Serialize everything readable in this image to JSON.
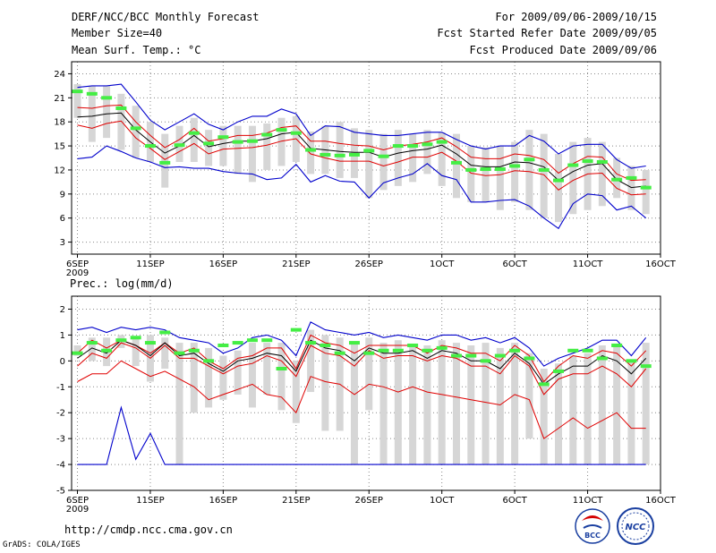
{
  "header": {
    "title": "DERF/NCC/BCC Monthly Forecast",
    "member_size": "Member Size=40",
    "variable": "Mean Surf. Temp.: °C",
    "period": "For 2009/09/06-2009/10/15",
    "started": "Fcst Started Refer Date 2009/09/05",
    "produced": "Fcst Produced Date 2009/09/06"
  },
  "footer": {
    "url": "http://cmdp.ncc.cma.gov.cn",
    "grads": "GrADS: COLA/IGES",
    "logo_bcc": "BCC",
    "logo_ncc": "NCC"
  },
  "colors": {
    "box": "#d6d6d6",
    "mean": "#000000",
    "spread": "#e00000",
    "range": "#0000cc",
    "obs": "#44ee44",
    "grid": "#888888"
  },
  "chart_data": [
    {
      "type": "line",
      "title": "Mean Surf. Temp.: °C",
      "x": [
        1,
        2,
        3,
        4,
        5,
        6,
        7,
        8,
        9,
        10,
        11,
        12,
        13,
        14,
        15,
        16,
        17,
        18,
        19,
        20,
        21,
        22,
        23,
        24,
        25,
        26,
        27,
        28,
        29,
        30,
        31,
        32,
        33,
        34,
        35,
        36,
        37,
        38,
        39,
        40
      ],
      "xticks": [
        {
          "x": 1,
          "label": "6SEP",
          "sub": "2009"
        },
        {
          "x": 6,
          "label": "11SEP"
        },
        {
          "x": 11,
          "label": "16SEP"
        },
        {
          "x": 16,
          "label": "21SEP"
        },
        {
          "x": 21,
          "label": "26SEP"
        },
        {
          "x": 26,
          "label": "1OCT"
        },
        {
          "x": 31,
          "label": "6OCT"
        },
        {
          "x": 36,
          "label": "11OCT"
        },
        {
          "x": 41,
          "label": "16OCT"
        }
      ],
      "xlim": [
        0.6,
        41
      ],
      "ylim": [
        1.5,
        25.5
      ],
      "yticks": [
        3,
        6,
        9,
        12,
        15,
        18,
        21,
        24
      ],
      "series": [
        {
          "name": "max",
          "role": "range",
          "values": [
            22.3,
            22.5,
            22.5,
            22.7,
            20.5,
            18.2,
            17.0,
            18.0,
            19.0,
            17.7,
            17.0,
            18.0,
            18.7,
            18.7,
            19.6,
            19.0,
            16.3,
            17.5,
            17.4,
            16.7,
            16.5,
            16.3,
            16.3,
            16.5,
            16.7,
            16.7,
            15.8,
            15.0,
            14.6,
            15.0,
            15.0,
            16.3,
            15.6,
            14.0,
            15.0,
            15.2,
            15.2,
            13.3,
            12.2,
            12.5
          ]
        },
        {
          "name": "upper",
          "role": "spread",
          "values": [
            19.8,
            19.7,
            20.0,
            20.1,
            18.0,
            16.3,
            14.8,
            15.8,
            17.2,
            15.6,
            15.9,
            16.3,
            16.3,
            16.6,
            17.3,
            17.5,
            15.6,
            15.6,
            15.3,
            15.1,
            15.0,
            14.5,
            15.0,
            15.2,
            15.5,
            16.0,
            14.9,
            13.6,
            13.4,
            13.4,
            14.0,
            13.8,
            13.3,
            11.6,
            12.8,
            13.7,
            13.6,
            11.5,
            10.7,
            10.8
          ]
        },
        {
          "name": "mean",
          "role": "mean",
          "values": [
            18.6,
            18.7,
            19.0,
            19.1,
            17.0,
            15.5,
            14.1,
            15.0,
            16.3,
            14.9,
            15.3,
            15.6,
            15.6,
            15.9,
            16.5,
            16.7,
            14.7,
            14.5,
            14.3,
            14.2,
            14.2,
            13.6,
            14.1,
            14.4,
            14.6,
            15.1,
            14.0,
            12.6,
            12.4,
            12.4,
            13.0,
            12.9,
            12.4,
            10.7,
            11.8,
            12.6,
            12.8,
            10.8,
            9.8,
            10.0
          ]
        },
        {
          "name": "lower",
          "role": "spread",
          "values": [
            17.6,
            17.2,
            17.8,
            18.1,
            16.0,
            14.7,
            13.3,
            14.3,
            15.3,
            14.0,
            14.6,
            14.7,
            14.8,
            15.1,
            15.6,
            15.9,
            14.0,
            13.5,
            13.1,
            13.1,
            13.1,
            12.5,
            13.0,
            13.6,
            13.6,
            14.2,
            13.1,
            11.6,
            11.3,
            11.4,
            11.9,
            11.8,
            11.4,
            9.5,
            10.7,
            11.5,
            11.6,
            9.7,
            8.9,
            9.0
          ]
        },
        {
          "name": "min",
          "role": "range",
          "values": [
            13.4,
            13.6,
            15.0,
            14.3,
            13.5,
            13.0,
            12.3,
            12.4,
            12.2,
            12.2,
            11.8,
            11.6,
            11.5,
            10.8,
            11.0,
            12.7,
            10.5,
            11.3,
            10.6,
            10.5,
            8.5,
            10.4,
            11.0,
            11.5,
            12.8,
            11.3,
            10.8,
            8.0,
            8.0,
            8.2,
            8.3,
            7.5,
            6.0,
            4.7,
            7.8,
            9.0,
            8.8,
            7.0,
            7.5,
            6.0
          ]
        },
        {
          "name": "obs",
          "role": "obs",
          "values": [
            21.8,
            21.5,
            21.0,
            19.7,
            17.2,
            15.0,
            12.9,
            15.1,
            16.6,
            15.3,
            16.1,
            15.5,
            15.6,
            16.4,
            17.0,
            16.6,
            14.5,
            13.9,
            13.8,
            13.9,
            14.4,
            13.7,
            15.0,
            15.0,
            15.2,
            15.5,
            12.9,
            12.0,
            12.1,
            12.1,
            12.5,
            13.3,
            12.0,
            10.7,
            12.6,
            13.1,
            13.0,
            10.8,
            11.0,
            9.8
          ]
        },
        {
          "name": "box_top",
          "role": "box",
          "values": [
            22.7,
            22.5,
            22.5,
            21.5,
            20.0,
            18.0,
            16.5,
            17.5,
            18.5,
            17.0,
            17.5,
            17.5,
            17.5,
            17.8,
            18.5,
            18.7,
            16.8,
            17.5,
            18.0,
            17.2,
            17.0,
            16.5,
            17.0,
            16.5,
            17.0,
            16.7,
            16.5,
            15.0,
            14.8,
            15.0,
            15.5,
            17.0,
            16.5,
            14.0,
            15.5,
            16.0,
            15.5,
            13.5,
            12.5,
            12.0
          ]
        },
        {
          "name": "box_bottom",
          "role": "box",
          "values": [
            18.5,
            15.5,
            16.0,
            14.5,
            13.5,
            13.0,
            9.8,
            13.0,
            13.0,
            12.5,
            12.5,
            11.5,
            10.5,
            12.0,
            12.5,
            13.0,
            11.5,
            11.5,
            11.0,
            11.0,
            8.5,
            9.5,
            10.0,
            10.5,
            11.5,
            10.0,
            8.5,
            8.0,
            8.0,
            7.0,
            8.0,
            7.0,
            6.0,
            5.5,
            6.5,
            7.0,
            7.5,
            8.5,
            7.0,
            6.5
          ]
        }
      ]
    },
    {
      "type": "line",
      "title": "Prec.: log(mm/d)",
      "x": [
        1,
        2,
        3,
        4,
        5,
        6,
        7,
        8,
        9,
        10,
        11,
        12,
        13,
        14,
        15,
        16,
        17,
        18,
        19,
        20,
        21,
        22,
        23,
        24,
        25,
        26,
        27,
        28,
        29,
        30,
        31,
        32,
        33,
        34,
        35,
        36,
        37,
        38,
        39,
        40
      ],
      "xticks": [
        {
          "x": 1,
          "label": "6SEP",
          "sub": "2009"
        },
        {
          "x": 6,
          "label": "11SEP"
        },
        {
          "x": 11,
          "label": "16SEP"
        },
        {
          "x": 16,
          "label": "21SEP"
        },
        {
          "x": 21,
          "label": "26SEP"
        },
        {
          "x": 26,
          "label": "1OCT"
        },
        {
          "x": 31,
          "label": "6OCT"
        },
        {
          "x": 36,
          "label": "11OCT"
        },
        {
          "x": 41,
          "label": "16OCT"
        }
      ],
      "xlim": [
        0.6,
        41
      ],
      "ylim": [
        -5,
        2.5
      ],
      "yticks": [
        -5,
        -4,
        -3,
        -2,
        -1,
        0,
        1,
        2
      ],
      "series": [
        {
          "name": "max",
          "role": "range",
          "values": [
            1.2,
            1.3,
            1.1,
            1.3,
            1.2,
            1.3,
            1.2,
            0.9,
            0.8,
            0.7,
            0.3,
            0.5,
            0.9,
            1.0,
            0.8,
            0.2,
            1.5,
            1.2,
            1.1,
            1.0,
            1.1,
            0.9,
            1.0,
            0.9,
            0.8,
            1.0,
            1.0,
            0.8,
            0.9,
            0.7,
            0.9,
            0.5,
            -0.2,
            0.1,
            0.3,
            0.5,
            0.8,
            0.8,
            0.2,
            0.9
          ]
        },
        {
          "name": "upper",
          "role": "spread",
          "values": [
            0.3,
            0.8,
            0.5,
            0.8,
            0.6,
            0.3,
            0.7,
            0.3,
            0.5,
            0.0,
            -0.3,
            0.1,
            0.2,
            0.5,
            0.5,
            -0.3,
            1.0,
            0.7,
            0.6,
            0.3,
            0.6,
            0.6,
            0.6,
            0.6,
            0.3,
            0.6,
            0.5,
            0.3,
            0.3,
            0.0,
            0.6,
            0.2,
            -0.8,
            -0.2,
            0.2,
            0.1,
            0.4,
            0.3,
            -0.2,
            0.4
          ]
        },
        {
          "name": "mean",
          "role": "mean",
          "values": [
            0.1,
            0.5,
            0.3,
            0.8,
            0.6,
            0.2,
            0.7,
            0.2,
            0.3,
            -0.1,
            -0.4,
            0.0,
            0.1,
            0.3,
            0.2,
            -0.4,
            0.8,
            0.5,
            0.4,
            0.0,
            0.5,
            0.3,
            0.3,
            0.4,
            0.1,
            0.4,
            0.3,
            0.0,
            0.0,
            -0.3,
            0.3,
            -0.1,
            -0.9,
            -0.5,
            -0.2,
            -0.2,
            0.2,
            0.0,
            -0.5,
            0.1
          ]
        },
        {
          "name": "lower",
          "role": "spread",
          "values": [
            -0.2,
            0.3,
            0.1,
            0.7,
            0.5,
            0.1,
            0.6,
            0.1,
            0.1,
            -0.2,
            -0.5,
            -0.2,
            -0.1,
            0.2,
            0.0,
            -0.6,
            0.6,
            0.3,
            0.2,
            -0.2,
            0.4,
            0.1,
            0.2,
            0.2,
            0.0,
            0.2,
            0.1,
            -0.2,
            -0.2,
            -0.5,
            0.2,
            -0.2,
            -1.3,
            -0.7,
            -0.5,
            -0.5,
            -0.2,
            -0.5,
            -1.0,
            -0.3
          ]
        },
        {
          "name": "min",
          "role": "range",
          "values": [
            -4,
            -4,
            -4,
            -1.8,
            -3.8,
            -2.8,
            -4,
            -4,
            -4,
            -4,
            -4,
            -4,
            -4,
            -4,
            -4,
            -4,
            -4,
            -4,
            -4,
            -4,
            -4,
            -4,
            -4,
            -4,
            -4,
            -4,
            -4,
            -4,
            -4,
            -4,
            -4,
            -4,
            -4,
            -4,
            -4,
            -4,
            -4,
            -4,
            -4,
            -4
          ]
        },
        {
          "name": "lower_red",
          "role": "spread",
          "values": [
            -0.8,
            -0.5,
            -0.5,
            0.0,
            -0.3,
            -0.6,
            -0.4,
            -0.7,
            -1.0,
            -1.5,
            -1.3,
            -1.1,
            -0.9,
            -1.3,
            -1.4,
            -2.0,
            -0.6,
            -0.8,
            -0.9,
            -1.3,
            -0.9,
            -1.0,
            -1.2,
            -1.0,
            -1.2,
            -1.3,
            -1.4,
            -1.5,
            -1.6,
            -1.7,
            -1.3,
            -1.5,
            -3.0,
            -2.6,
            -2.2,
            -2.6,
            -2.3,
            -2.0,
            -2.6,
            -2.6
          ]
        },
        {
          "name": "obs",
          "role": "obs",
          "values": [
            0.3,
            0.7,
            0.4,
            0.8,
            0.9,
            0.7,
            1.1,
            0.3,
            0.4,
            0.0,
            0.6,
            0.7,
            0.8,
            0.8,
            -0.3,
            1.2,
            0.7,
            0.6,
            0.3,
            0.7,
            0.3,
            0.4,
            0.4,
            0.6,
            0.4,
            0.5,
            0.2,
            0.2,
            0.0,
            0.2,
            0.4,
            0.1,
            -0.9,
            -0.4,
            0.4,
            0.4,
            0.1,
            0.6,
            0.0,
            -0.2
          ]
        },
        {
          "name": "box_top",
          "role": "box",
          "values": [
            0.6,
            0.9,
            0.9,
            1.0,
            0.9,
            1.0,
            0.9,
            0.7,
            0.7,
            0.5,
            0.2,
            0.4,
            0.7,
            0.7,
            0.7,
            0.0,
            1.2,
            1.0,
            0.9,
            0.7,
            0.9,
            0.7,
            0.8,
            0.6,
            0.6,
            0.8,
            0.7,
            0.6,
            0.7,
            0.5,
            0.7,
            0.3,
            -0.3,
            -0.1,
            0.2,
            0.3,
            0.6,
            0.6,
            0.0,
            0.7
          ]
        },
        {
          "name": "box_bottom",
          "role": "box",
          "values": [
            0.2,
            0.0,
            -0.2,
            0.5,
            -0.2,
            -0.8,
            -0.3,
            -4,
            -2.0,
            -1.8,
            -1.5,
            -1.3,
            -1.8,
            -1.3,
            -1.9,
            -2.4,
            -1.2,
            -2.7,
            -2.7,
            -4,
            -1.9,
            -4,
            -4,
            -4,
            -4,
            -4,
            -4,
            -4,
            -4,
            -4,
            -4,
            -3.0,
            -4,
            -4,
            -4,
            -4,
            -4,
            -4,
            -4,
            -4
          ]
        }
      ]
    }
  ]
}
